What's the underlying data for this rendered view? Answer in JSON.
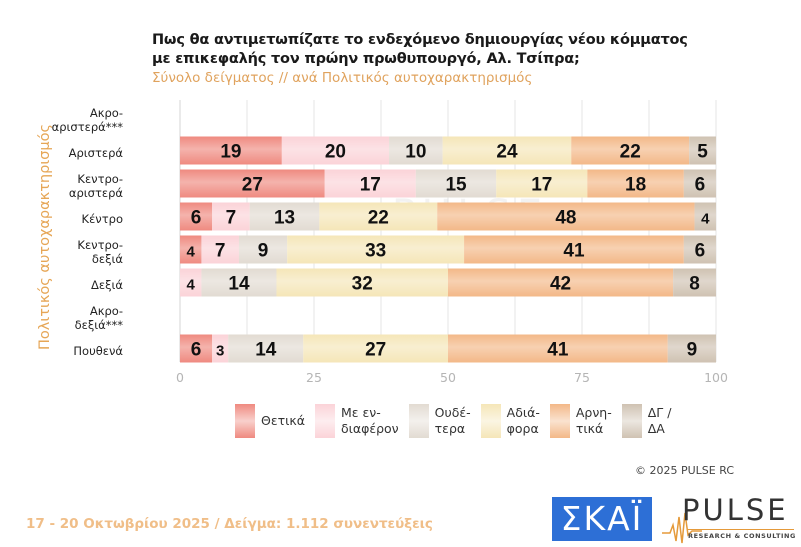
{
  "header": {
    "title_line1": "Πως θα αντιμετωπίζατε το ενδεχόμενο δημιουργίας νέου κόμματος",
    "title_line2": "με επικεφαλής τον πρώην πρωθυπουργό, Αλ. Τσίπρα;",
    "subtitle": "Σύνολο δείγματος // ανά Πολιτικός αυτοχαρακτηρισμός"
  },
  "chart_data": {
    "type": "bar",
    "orientation": "horizontal",
    "stacked": true,
    "title": "Πως θα αντιμετωπίζατε το ενδεχόμενο δημιουργίας νέου κόμματος με επικεφαλής τον πρώην πρωθυπουργό, Αλ. Τσίπρα;",
    "subtitle": "Σύνολο δείγματος // ανά Πολιτικός αυτοχαρακτηρισμός",
    "ylabel": "Πολιτικός αυτοχαρακτηρισμός",
    "xlabel": "",
    "xlim": [
      0,
      100
    ],
    "xticks": [
      "0",
      "25",
      "50",
      "75",
      "100"
    ],
    "grid": true,
    "legend_position": "bottom",
    "categories": [
      "Ακρο-\nαριστερά***",
      "Αριστερά",
      "Κεντρο-\nαριστερά",
      "Κέντρο",
      "Κεντρο-\nδεξιά",
      "Δεξιά",
      "Ακρο-\nδεξιά***",
      "Πουθενά"
    ],
    "series": [
      {
        "name": "Θετικά",
        "legend_label": "Θετικά",
        "color": "#ef8a80",
        "values": [
          null,
          19,
          27,
          6,
          4,
          0,
          null,
          6
        ]
      },
      {
        "name": "Με ενδιαφέρον",
        "legend_label": "Με εν-\nδιαφέρον",
        "color": "#fbd3d8",
        "values": [
          null,
          20,
          17,
          7,
          7,
          4,
          null,
          3
        ]
      },
      {
        "name": "Ουδέτερα",
        "legend_label": "Ουδέ-\nτερα",
        "color": "#e2dbd2",
        "values": [
          null,
          10,
          15,
          13,
          9,
          14,
          null,
          14
        ]
      },
      {
        "name": "Αδιάφορα",
        "legend_label": "Αδιά-\nφορα",
        "color": "#f5e6b8",
        "values": [
          null,
          24,
          17,
          22,
          33,
          32,
          null,
          27
        ]
      },
      {
        "name": "Αρνητικά",
        "legend_label": "Αρνη-\nτικά",
        "color": "#f3b888",
        "values": [
          null,
          22,
          18,
          48,
          41,
          42,
          null,
          41
        ]
      },
      {
        "name": "ΔΓ / ΔΑ",
        "legend_label": "ΔΓ /\nΔΑ",
        "color": "#cfc2b2",
        "values": [
          null,
          5,
          6,
          4,
          6,
          8,
          null,
          9
        ]
      }
    ]
  },
  "footer": {
    "copyright": "©  2025  PULSE RC",
    "fieldwork": "17 - 20 Οκτωβρίου 2025  /  Δείγμα:  1.112 συνεντεύξεις",
    "logo_skai": "ΣΚΑΪ",
    "logo_pulse": "PULSE",
    "logo_pulse_sub": "RESEARCH & CONSULTING"
  }
}
